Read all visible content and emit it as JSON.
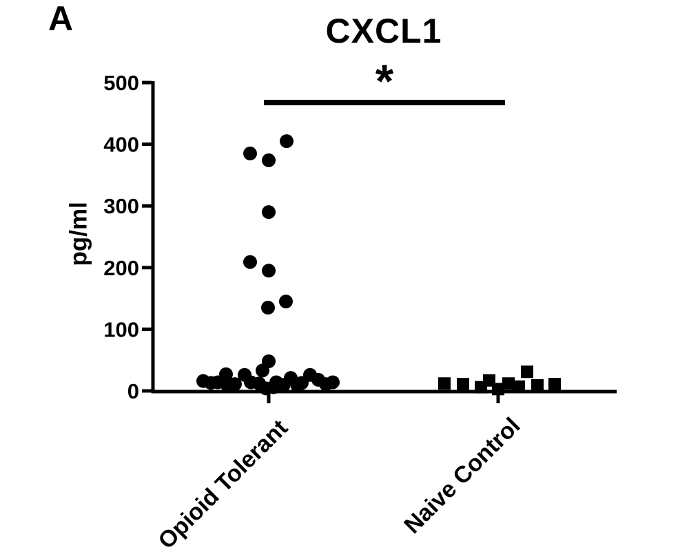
{
  "panel_label": "A",
  "figure": {
    "title": "CXCL1",
    "significance_symbol": "*",
    "y_axis_label": "pg/ml"
  },
  "chart_data": {
    "type": "scatter",
    "title": "CXCL1",
    "xlabel": "",
    "ylabel": "pg/ml",
    "ylim": [
      0,
      500
    ],
    "y_ticks": [
      500,
      400,
      300,
      200,
      100,
      0
    ],
    "grid": false,
    "legend": "none",
    "marker_color": "#000000",
    "axis_color": "#000000",
    "significance": {
      "symbol": "*",
      "between": [
        "Opioid Tolerant",
        "Naive Control"
      ]
    },
    "groups": [
      {
        "label": "Opioid Tolerant",
        "marker": "circle",
        "n": 30,
        "values_pg_ml": [
          405,
          385,
          374,
          290,
          209,
          195,
          145,
          135,
          48,
          33,
          27,
          26,
          26,
          21,
          18,
          16,
          14,
          14,
          14,
          14,
          13,
          13,
          12,
          11,
          11,
          10,
          9,
          8,
          6,
          4
        ],
        "points": [
          {
            "dx": 26,
            "v": 405
          },
          {
            "dx": -27,
            "v": 385
          },
          {
            "dx": 0,
            "v": 374
          },
          {
            "dx": 0,
            "v": 290
          },
          {
            "dx": -27,
            "v": 209
          },
          {
            "dx": 0,
            "v": 195
          },
          {
            "dx": 25,
            "v": 145
          },
          {
            "dx": -1,
            "v": 135
          },
          {
            "dx": 0,
            "v": 48
          },
          {
            "dx": -95,
            "v": 16
          },
          {
            "dx": -84,
            "v": 13
          },
          {
            "dx": -74,
            "v": 14
          },
          {
            "dx": -62,
            "v": 27
          },
          {
            "dx": -60,
            "v": 9
          },
          {
            "dx": -49,
            "v": 11
          },
          {
            "dx": -35,
            "v": 26
          },
          {
            "dx": -26,
            "v": 14
          },
          {
            "dx": -14,
            "v": 12
          },
          {
            "dx": -9,
            "v": 33
          },
          {
            "dx": -4,
            "v": 4
          },
          {
            "dx": 7,
            "v": 6
          },
          {
            "dx": 11,
            "v": 14
          },
          {
            "dx": 22,
            "v": 10
          },
          {
            "dx": 32,
            "v": 21
          },
          {
            "dx": 42,
            "v": 8
          },
          {
            "dx": 48,
            "v": 13
          },
          {
            "dx": 60,
            "v": 26
          },
          {
            "dx": 72,
            "v": 18
          },
          {
            "dx": 83,
            "v": 11
          },
          {
            "dx": 93,
            "v": 14
          }
        ]
      },
      {
        "label": "Naive Control",
        "marker": "square",
        "n": 10,
        "values_pg_ml": [
          31,
          17,
          12,
          12,
          11,
          11,
          9,
          7,
          6,
          3
        ],
        "points": [
          {
            "dx": -78,
            "v": 12
          },
          {
            "dx": -51,
            "v": 11
          },
          {
            "dx": -25,
            "v": 6
          },
          {
            "dx": -13,
            "v": 17
          },
          {
            "dx": 0,
            "v": 3
          },
          {
            "dx": 15,
            "v": 12
          },
          {
            "dx": 30,
            "v": 7
          },
          {
            "dx": 42,
            "v": 31
          },
          {
            "dx": 57,
            "v": 9
          },
          {
            "dx": 82,
            "v": 11
          }
        ]
      }
    ],
    "layout": {
      "plot": {
        "x_left": 222,
        "x_right": 895,
        "y_bottom": 568,
        "y_top": 120
      },
      "group_centers_x": [
        390,
        723
      ],
      "marker_size": {
        "circle_radius": 10,
        "square_side": 18
      },
      "tick_length": 15,
      "axis_stroke_width": 5,
      "sig_bar": {
        "x1": 383,
        "x2": 733,
        "y": 145,
        "height": 8
      }
    }
  }
}
